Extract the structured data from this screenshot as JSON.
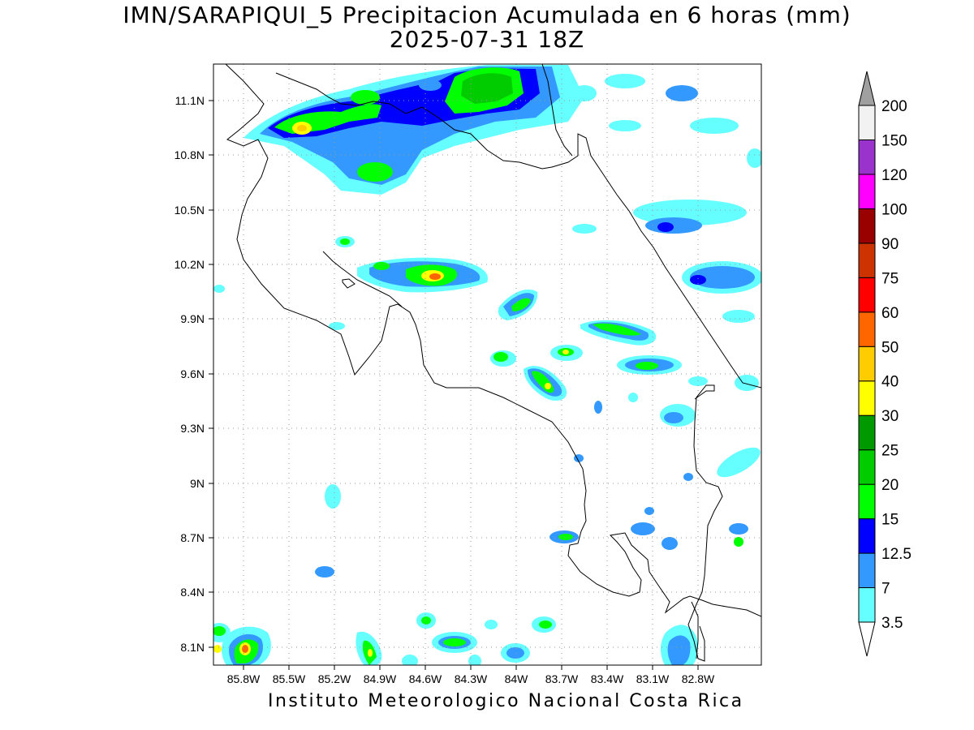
{
  "title_line1": "IMN/SARAPIQUI_5 Precipitacion Acumulada en 6 horas (mm)",
  "title_line2": "2025-07-31 18Z",
  "footer": "Instituto Meteorologico Nacional Costa Rica",
  "lat_labels": [
    "11.1N",
    "10.8N",
    "10.5N",
    "10.2N",
    "9.9N",
    "9.6N",
    "9.3N",
    "9N",
    "8.7N",
    "8.4N",
    "8.1N"
  ],
  "lon_labels": [
    "85.8W",
    "85.5W",
    "85.2W",
    "84.9W",
    "84.6W",
    "84.3W",
    "84W",
    "83.7W",
    "83.4W",
    "83.1W",
    "82.8W"
  ],
  "colorbar": {
    "labels": [
      "3.5",
      "7",
      "12.5",
      "15",
      "20",
      "25",
      "30",
      "40",
      "50",
      "60",
      "75",
      "90",
      "100",
      "120",
      "150",
      "200"
    ],
    "colors": [
      "#ffffff",
      "#66ffff",
      "#3399ff",
      "#0000ff",
      "#00ff00",
      "#00cc00",
      "#009900",
      "#ffff00",
      "#ffcc00",
      "#ff6600",
      "#ff0000",
      "#cc3300",
      "#990000",
      "#ff00ff",
      "#9933cc",
      "#f2f2f2"
    ],
    "over_color": "#a0a0a0"
  }
}
